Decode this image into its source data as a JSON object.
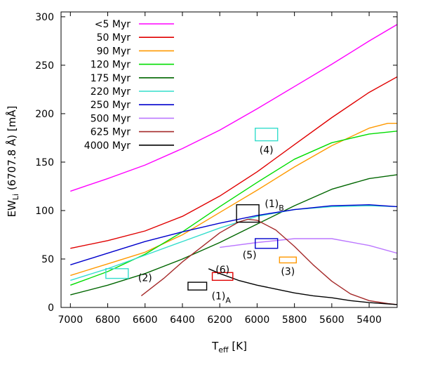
{
  "chart_data": {
    "type": "line",
    "xlabel_main": "T",
    "xlabel_sub": "eff",
    "xlabel_unit": " [K]",
    "ylabel_main": "EW",
    "ylabel_sub": "Li",
    "ylabel_rest": " (6707.8  Å) [mÅ]",
    "xlim": [
      7050,
      5250
    ],
    "ylim": [
      0,
      305
    ],
    "xticks": [
      7000,
      6800,
      6600,
      6400,
      6200,
      6000,
      5800,
      5600,
      5400
    ],
    "yticks": [
      0,
      50,
      100,
      150,
      200,
      250,
      300
    ],
    "series": [
      {
        "name": "<5 Myr",
        "color": "#ff00ff",
        "x": [
          7000,
          6800,
          6600,
          6400,
          6200,
          6000,
          5800,
          5600,
          5400,
          5250
        ],
        "y": [
          120,
          133,
          147,
          164,
          183,
          205,
          228,
          251,
          275,
          292
        ]
      },
      {
        "name": "50 Myr",
        "color": "#e00000",
        "x": [
          7000,
          6800,
          6600,
          6400,
          6200,
          6000,
          5800,
          5600,
          5400,
          5250
        ],
        "y": [
          61,
          69,
          79,
          94,
          115,
          140,
          168,
          196,
          222,
          238
        ]
      },
      {
        "name": "90 Myr",
        "color": "#ff9900",
        "x": [
          7000,
          6800,
          6600,
          6400,
          6200,
          6000,
          5800,
          5600,
          5400,
          5300,
          5250
        ],
        "y": [
          33,
          45,
          57,
          75,
          98,
          121,
          145,
          167,
          185,
          190,
          190
        ]
      },
      {
        "name": "120 Myr",
        "color": "#00dd00",
        "x": [
          7000,
          6800,
          6600,
          6400,
          6200,
          6000,
          5800,
          5600,
          5400,
          5250
        ],
        "y": [
          23,
          37,
          55,
          78,
          104,
          129,
          153,
          170,
          179,
          182
        ]
      },
      {
        "name": "175 Myr",
        "color": "#006600",
        "x": [
          7000,
          6800,
          6600,
          6400,
          6200,
          6000,
          5800,
          5600,
          5400,
          5250
        ],
        "y": [
          13,
          23,
          35,
          50,
          67,
          86,
          105,
          122,
          133,
          137
        ]
      },
      {
        "name": "220 Myr",
        "color": "#33ddcc",
        "x": [
          7000,
          6800,
          6600,
          6400,
          6200,
          6000,
          5800,
          5600,
          5400,
          5250
        ],
        "y": [
          28,
          40,
          54,
          68,
          82,
          94,
          101,
          104,
          105,
          104
        ]
      },
      {
        "name": "250 Myr",
        "color": "#0000cc",
        "x": [
          7000,
          6800,
          6600,
          6400,
          6200,
          6000,
          5800,
          5600,
          5400,
          5250
        ],
        "y": [
          44,
          56,
          68,
          78,
          87,
          95,
          101,
          105,
          106,
          104
        ]
      },
      {
        "name": "500 Myr",
        "color": "#bb77ff",
        "x": [
          6200,
          6000,
          5800,
          5600,
          5400,
          5250
        ],
        "y": [
          62,
          67,
          71,
          71,
          64,
          56
        ]
      },
      {
        "name": "625 Myr",
        "color": "#a52a2a",
        "x": [
          6620,
          6500,
          6400,
          6300,
          6200,
          6100,
          6050,
          6000,
          5900,
          5800,
          5700,
          5600,
          5500,
          5400,
          5300,
          5250
        ],
        "y": [
          12,
          30,
          47,
          62,
          77,
          88,
          91,
          90,
          80,
          63,
          44,
          27,
          14,
          7,
          4,
          3
        ]
      },
      {
        "name": "4000 Myr",
        "color": "#000000",
        "x": [
          6260,
          6200,
          6100,
          6000,
          5900,
          5800,
          5700,
          5600,
          5500,
          5400,
          5250
        ],
        "y": [
          40,
          35,
          28,
          23,
          19,
          15,
          12,
          10,
          7,
          5,
          3
        ]
      }
    ],
    "boxes": [
      {
        "label": "(1)",
        "sub": "A",
        "color": "#000000",
        "x0": 6370,
        "x1": 6270,
        "y0": 18,
        "y1": 26
      },
      {
        "label": "(1)",
        "sub": "B",
        "color": "#000000",
        "x0": 6110,
        "x1": 5990,
        "y0": 88,
        "y1": 106
      },
      {
        "label": "(2)",
        "sub": "",
        "color": "#33ddcc",
        "x0": 6810,
        "x1": 6690,
        "y0": 30,
        "y1": 40
      },
      {
        "label": "(3)",
        "sub": "",
        "color": "#ff9900",
        "x0": 5880,
        "x1": 5790,
        "y0": 46,
        "y1": 52
      },
      {
        "label": "(4)",
        "sub": "",
        "color": "#33ddcc",
        "x0": 6010,
        "x1": 5890,
        "y0": 172,
        "y1": 185
      },
      {
        "label": "(5)",
        "sub": "",
        "color": "#0000cc",
        "x0": 6010,
        "x1": 5890,
        "y0": 61,
        "y1": 71
      },
      {
        "label": "(6)",
        "sub": "",
        "color": "#e00000",
        "x0": 6240,
        "x1": 6130,
        "y0": 28,
        "y1": 36
      }
    ]
  }
}
